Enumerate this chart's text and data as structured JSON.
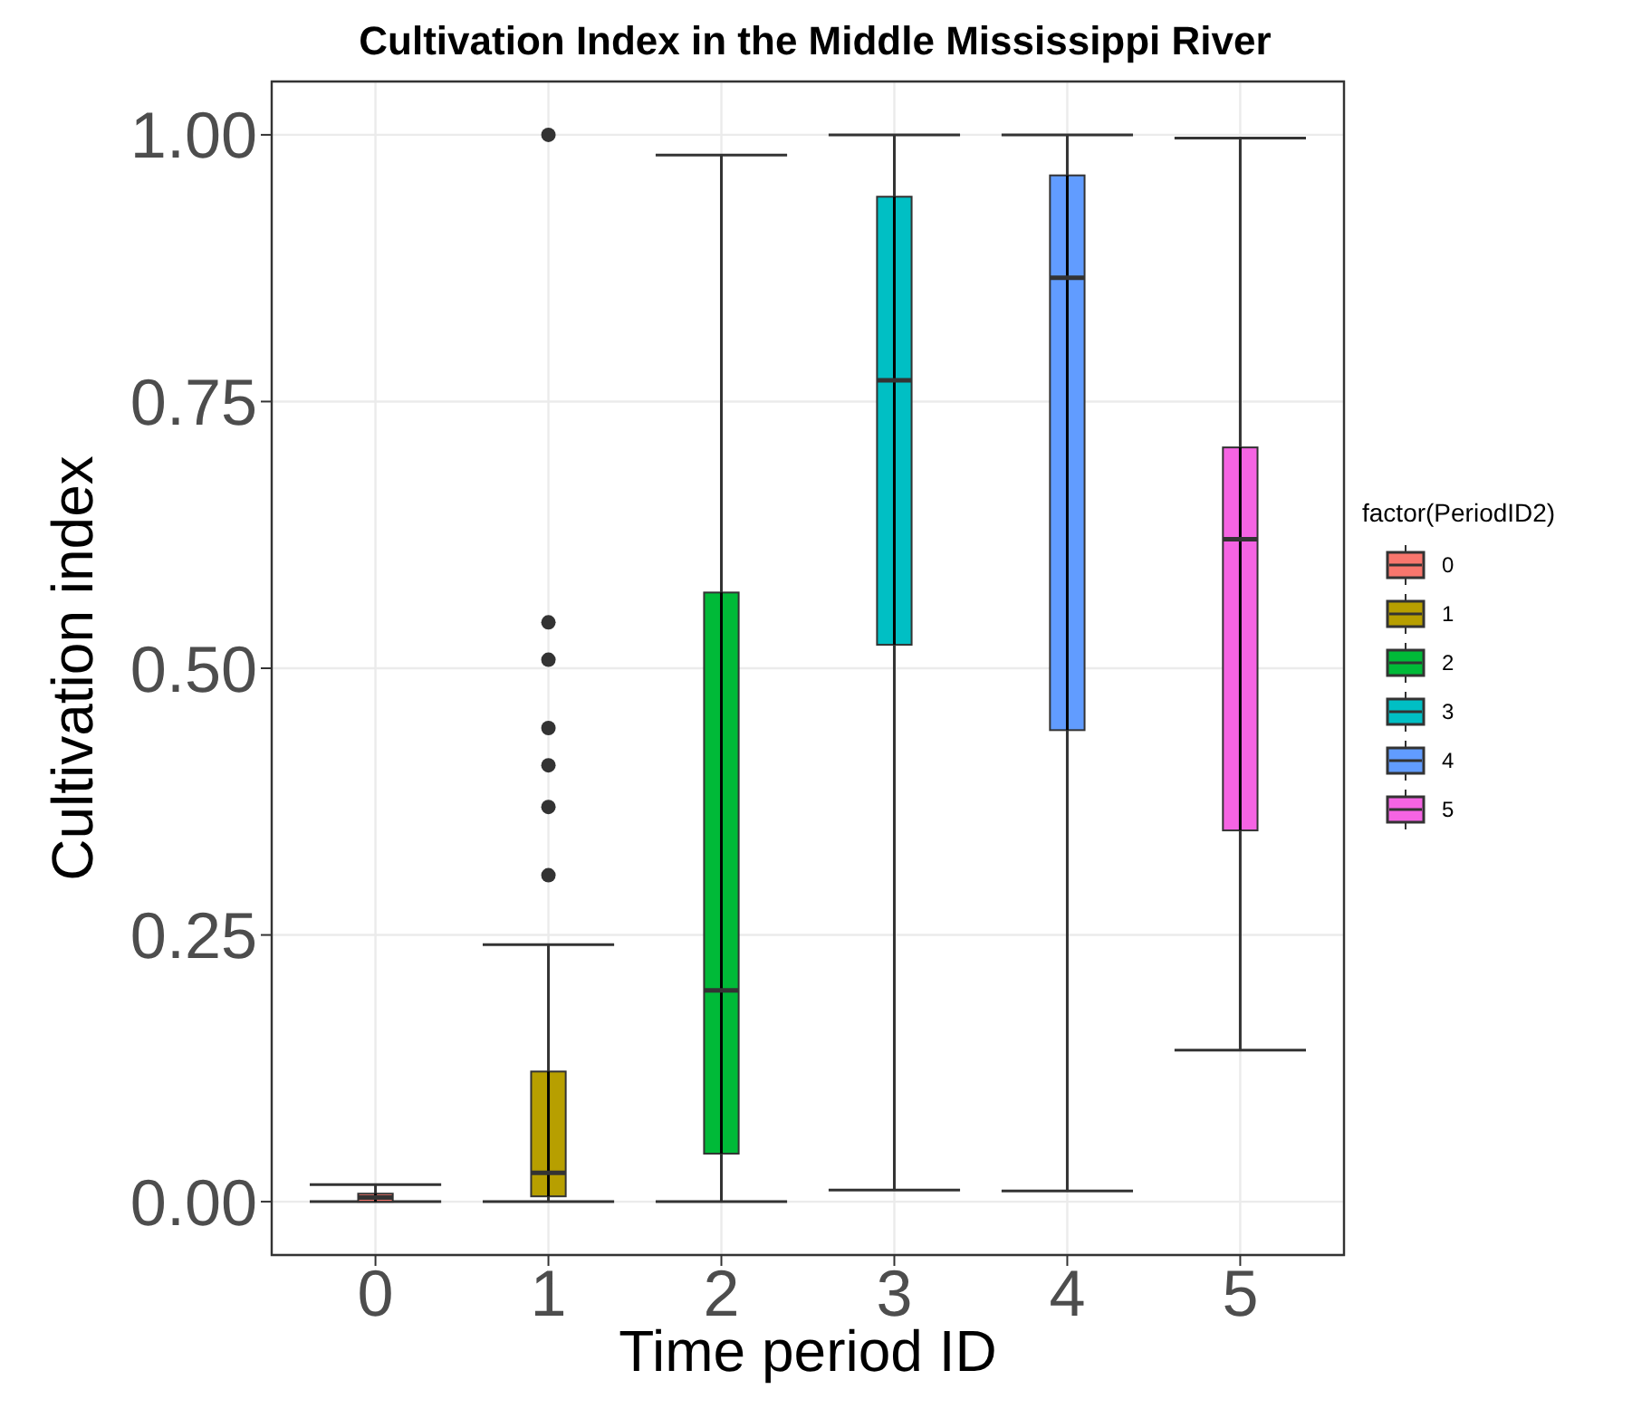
{
  "chart_data": {
    "type": "box",
    "title": "Cultivation Index in the Middle Mississippi River",
    "xlabel": "Time period ID",
    "ylabel": "Cultivation index",
    "legend_title": "factor(PeriodID2)",
    "categories": [
      "0",
      "1",
      "2",
      "3",
      "4",
      "5"
    ],
    "series": [
      {
        "name": "0",
        "color": "#f8766d",
        "boxes": [
          {
            "low": 0,
            "q1": 0,
            "median": 0.004,
            "q3": 0.0075,
            "high": 0.016
          },
          null,
          null,
          null,
          null,
          null
        ]
      },
      {
        "name": "1",
        "color": "#b79f00",
        "boxes": [
          null,
          {
            "low": 0,
            "q1": 0.005,
            "median": 0.027,
            "q3": 0.122,
            "high": 0.241,
            "outliers": [
              1.0,
              0.543,
              0.508,
              0.444,
              0.409,
              0.37,
              0.306
            ]
          },
          null,
          null,
          null,
          null
        ]
      },
      {
        "name": "2",
        "color": "#00ba38",
        "boxes": [
          null,
          null,
          {
            "low": 0,
            "q1": 0.045,
            "median": 0.198,
            "q3": 0.571,
            "high": 0.981
          },
          null,
          null,
          null
        ]
      },
      {
        "name": "3",
        "color": "#00bfc4",
        "boxes": [
          null,
          null,
          null,
          {
            "low": 0.011,
            "q1": 0.522,
            "median": 0.77,
            "q3": 0.942,
            "high": 1.0
          },
          null,
          null
        ]
      },
      {
        "name": "4",
        "color": "#619cff",
        "boxes": [
          null,
          null,
          null,
          null,
          {
            "low": 0.01,
            "q1": 0.442,
            "median": 0.866,
            "q3": 0.962,
            "high": 1.0
          },
          null
        ]
      },
      {
        "name": "5",
        "color": "#f564e3",
        "boxes": [
          null,
          null,
          null,
          null,
          null,
          {
            "low": 0.142,
            "q1": 0.348,
            "median": 0.621,
            "q3": 0.707,
            "high": 0.997
          }
        ]
      }
    ],
    "ylim": [
      -0.05,
      1.05
    ],
    "yticks": [
      {
        "value": 0,
        "label": "0.00"
      },
      {
        "value": 0.25,
        "label": "0.25"
      },
      {
        "value": 0.5,
        "label": "0.50"
      },
      {
        "value": 0.75,
        "label": "0.75"
      },
      {
        "value": 1,
        "label": "1.00"
      }
    ],
    "grid": true,
    "legend": "right"
  }
}
